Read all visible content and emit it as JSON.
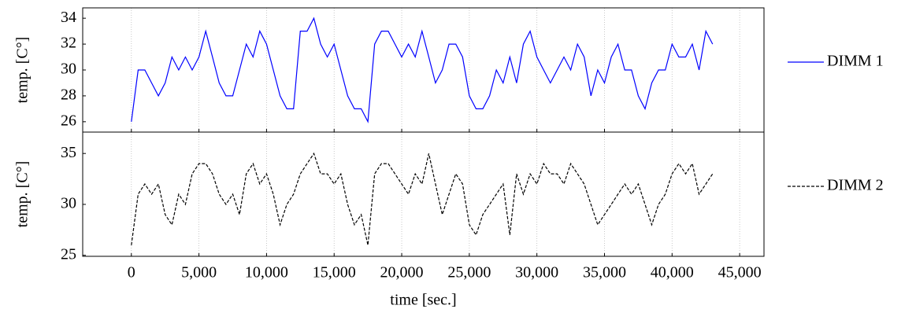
{
  "chart_data": [
    {
      "type": "line",
      "ylabel": "temp. [C°]",
      "x": [
        0,
        500,
        1000,
        1500,
        2000,
        2500,
        3000,
        3500,
        4000,
        4500,
        5000,
        5500,
        6000,
        6500,
        7000,
        7500,
        8000,
        8500,
        9000,
        9500,
        10000,
        10500,
        11000,
        11500,
        12000,
        12500,
        13000,
        13500,
        14000,
        14500,
        15000,
        15500,
        16000,
        16500,
        17000,
        17500,
        18000,
        18500,
        19000,
        19500,
        20000,
        20500,
        21000,
        21500,
        22000,
        22500,
        23000,
        23500,
        24000,
        24500,
        25000,
        25500,
        26000,
        26500,
        27000,
        27500,
        28000,
        28500,
        29000,
        29500,
        30000,
        30500,
        31000,
        31500,
        32000,
        32500,
        33000,
        33500,
        34000,
        34500,
        35000,
        35500,
        36000,
        36500,
        37000,
        37500,
        38000,
        38500,
        39000,
        39500,
        40000,
        40500,
        41000,
        41500,
        42000,
        42500,
        43000
      ],
      "series": [
        {
          "name": "DIMM 1",
          "color": "#0000ff",
          "dash": false,
          "values": [
            26,
            30,
            30,
            29,
            28,
            29,
            31,
            30,
            31,
            30,
            31,
            33,
            31,
            29,
            28,
            28,
            30,
            32,
            31,
            33,
            32,
            30,
            28,
            27,
            27,
            33,
            33,
            34,
            32,
            31,
            32,
            30,
            28,
            27,
            27,
            26,
            32,
            33,
            33,
            32,
            31,
            32,
            31,
            33,
            31,
            29,
            30,
            32,
            32,
            31,
            28,
            27,
            27,
            28,
            30,
            29,
            31,
            29,
            32,
            33,
            31,
            30,
            29,
            30,
            31,
            30,
            32,
            31,
            28,
            30,
            29,
            31,
            32,
            30,
            30,
            28,
            27,
            29,
            30,
            30,
            32,
            31,
            31,
            32,
            30,
            33,
            32
          ]
        }
      ],
      "xlim": [
        -3600,
        46800
      ],
      "ylim": [
        25.2,
        34.8
      ],
      "yticks": [
        26,
        28,
        30,
        32,
        34
      ],
      "xticks": [
        0,
        5000,
        10000,
        15000,
        20000,
        25000,
        30000,
        35000,
        40000,
        45000
      ],
      "grid": true
    },
    {
      "type": "line",
      "ylabel": "temp. [C°]",
      "xlabel": "time [sec.]",
      "x": [
        0,
        500,
        1000,
        1500,
        2000,
        2500,
        3000,
        3500,
        4000,
        4500,
        5000,
        5500,
        6000,
        6500,
        7000,
        7500,
        8000,
        8500,
        9000,
        9500,
        10000,
        10500,
        11000,
        11500,
        12000,
        12500,
        13000,
        13500,
        14000,
        14500,
        15000,
        15500,
        16000,
        16500,
        17000,
        17500,
        18000,
        18500,
        19000,
        19500,
        20000,
        20500,
        21000,
        21500,
        22000,
        22500,
        23000,
        23500,
        24000,
        24500,
        25000,
        25500,
        26000,
        26500,
        27000,
        27500,
        28000,
        28500,
        29000,
        29500,
        30000,
        30500,
        31000,
        31500,
        32000,
        32500,
        33000,
        33500,
        34000,
        34500,
        35000,
        35500,
        36000,
        36500,
        37000,
        37500,
        38000,
        38500,
        39000,
        39500,
        40000,
        40500,
        41000,
        41500,
        42000,
        42500,
        43000
      ],
      "series": [
        {
          "name": "DIMM 2",
          "color": "#000000",
          "dash": true,
          "values": [
            26,
            31,
            32,
            31,
            32,
            29,
            28,
            31,
            30,
            33,
            34,
            34,
            33,
            31,
            30,
            31,
            29,
            33,
            34,
            32,
            33,
            31,
            28,
            30,
            31,
            33,
            34,
            35,
            33,
            33,
            32,
            33,
            30,
            28,
            29,
            26,
            33,
            34,
            34,
            33,
            32,
            31,
            33,
            32,
            35,
            32,
            29,
            31,
            33,
            32,
            28,
            27,
            29,
            30,
            31,
            32,
            27,
            33,
            31,
            33,
            32,
            34,
            33,
            33,
            32,
            34,
            33,
            32,
            30,
            28,
            29,
            30,
            31,
            32,
            31,
            32,
            30,
            28,
            30,
            31,
            33,
            34,
            33,
            34,
            31,
            32,
            33
          ]
        }
      ],
      "xlim": [
        -3600,
        46800
      ],
      "ylim": [
        24.9,
        37.1
      ],
      "yticks": [
        25,
        30,
        35
      ],
      "xticks": [
        {
          "value": 0,
          "label": "0"
        },
        {
          "value": 5000,
          "label": "5,000"
        },
        {
          "value": 10000,
          "label": "10,000"
        },
        {
          "value": 15000,
          "label": "15,000"
        },
        {
          "value": 20000,
          "label": "20,000"
        },
        {
          "value": 25000,
          "label": "25,000"
        },
        {
          "value": 30000,
          "label": "30,000"
        },
        {
          "value": 35000,
          "label": "35,000"
        },
        {
          "value": 40000,
          "label": "40,000"
        },
        {
          "value": 45000,
          "label": "45,000"
        }
      ],
      "grid": true
    }
  ]
}
